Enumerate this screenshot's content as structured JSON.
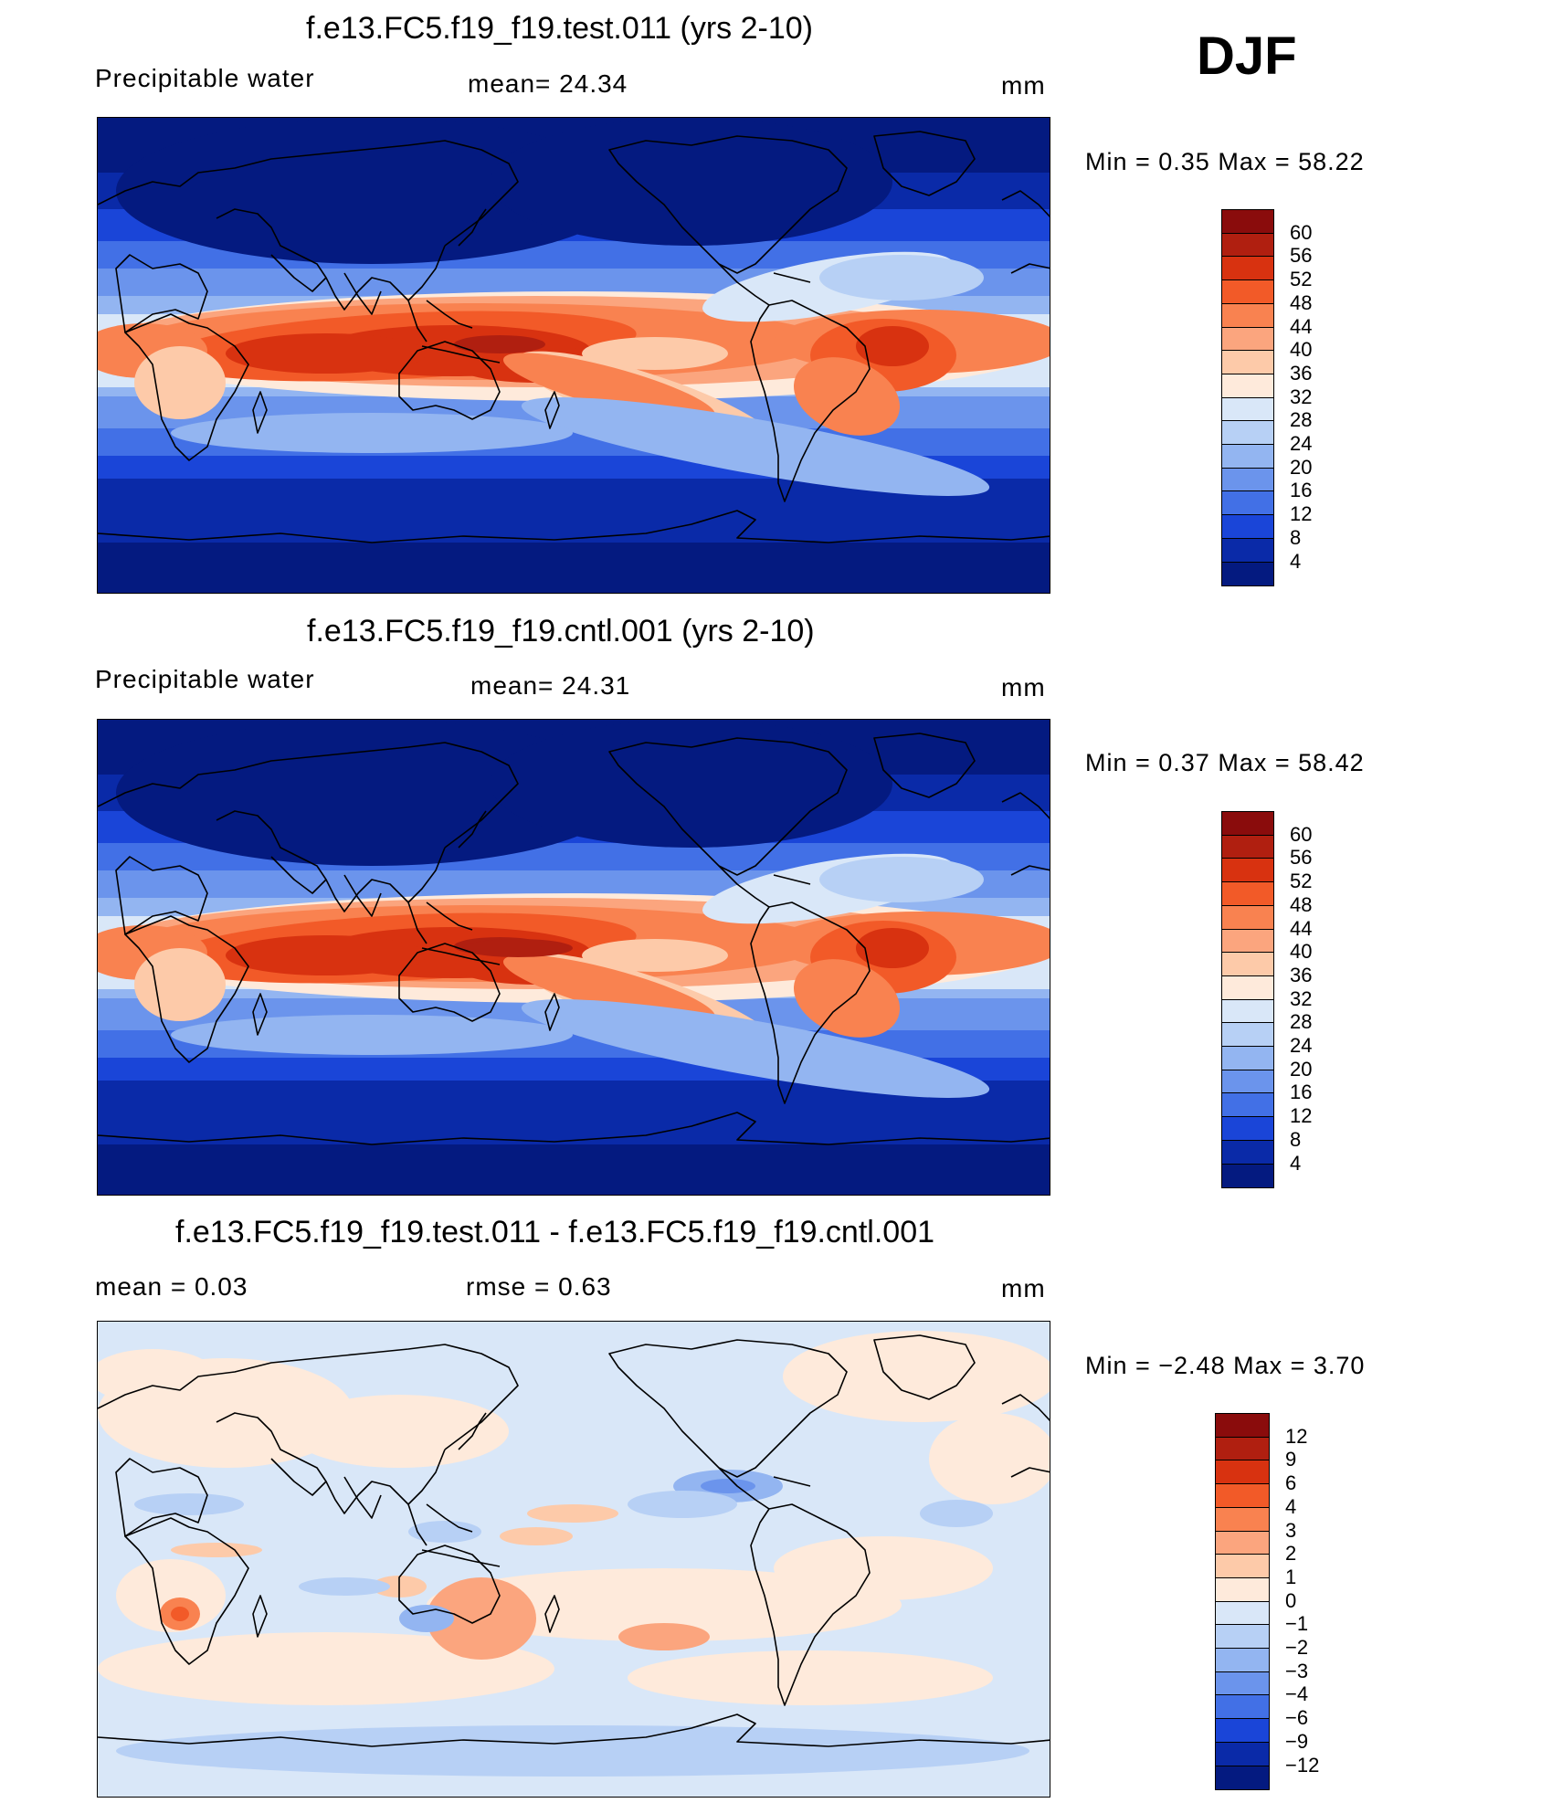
{
  "season": "DJF",
  "panels": [
    {
      "title": "f.e13.FC5.f19_f19.test.011 (yrs 2-10)",
      "left_label": "Precipitable  water",
      "mid_label": "mean=   24.34",
      "units": "mm",
      "minmax": "Min  =     0.35  Max  =     58.22",
      "colorbar_levels": [
        "60",
        "56",
        "52",
        "48",
        "44",
        "40",
        "36",
        "32",
        "28",
        "24",
        "20",
        "16",
        "12",
        "8",
        "4"
      ],
      "colors": [
        "#8a0c0c",
        "#b01f10",
        "#d83210",
        "#f25a28",
        "#f98250",
        "#fba57e",
        "#fdcaa9",
        "#feeadb",
        "#d9e7f8",
        "#b7d0f5",
        "#93b5f1",
        "#6b94ec",
        "#4270e6",
        "#1a45d8",
        "#0a2aa8",
        "#041a80"
      ],
      "kind": "abs"
    },
    {
      "title": "f.e13.FC5.f19_f19.cntl.001 (yrs 2-10)",
      "left_label": "Precipitable  water",
      "mid_label": "mean=   24.31",
      "units": "mm",
      "minmax": "Min  =     0.37  Max  =     58.42",
      "colorbar_levels": [
        "60",
        "56",
        "52",
        "48",
        "44",
        "40",
        "36",
        "32",
        "28",
        "24",
        "20",
        "16",
        "12",
        "8",
        "4"
      ],
      "colors": [
        "#8a0c0c",
        "#b01f10",
        "#d83210",
        "#f25a28",
        "#f98250",
        "#fba57e",
        "#fdcaa9",
        "#feeadb",
        "#d9e7f8",
        "#b7d0f5",
        "#93b5f1",
        "#6b94ec",
        "#4270e6",
        "#1a45d8",
        "#0a2aa8",
        "#041a80"
      ],
      "kind": "abs"
    },
    {
      "title": "f.e13.FC5.f19_f19.test.011 - f.e13.FC5.f19_f19.cntl.001",
      "left_label": "mean  =      0.03",
      "mid_label": "rmse  =      0.63",
      "units": "mm",
      "minmax": "Min  =   −2.48  Max  =       3.70",
      "colorbar_levels": [
        "12",
        "9",
        "6",
        "4",
        "3",
        "2",
        "1",
        "0",
        "−1",
        "−2",
        "−3",
        "−4",
        "−6",
        "−9",
        "−12"
      ],
      "colors": [
        "#8a0c0c",
        "#b01f10",
        "#d83210",
        "#f25a28",
        "#f98250",
        "#fba57e",
        "#fdcaa9",
        "#feeadb",
        "#d9e7f8",
        "#b7d0f5",
        "#93b5f1",
        "#6b94ec",
        "#4270e6",
        "#1a45d8",
        "#0a2aa8",
        "#041a80"
      ],
      "kind": "diff"
    }
  ]
}
